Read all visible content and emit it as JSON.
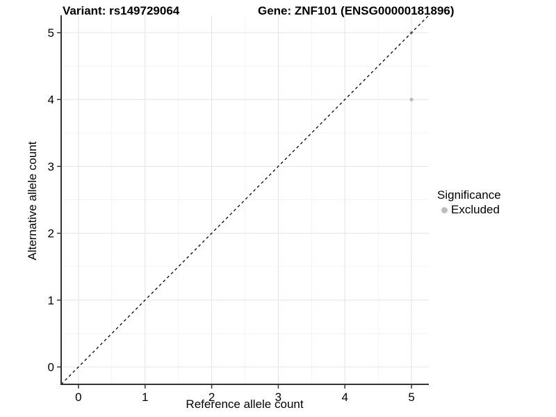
{
  "figure": {
    "title_left": "Variant: rs149729064",
    "title_right": "Gene: ZNF101 (ENSG00000181896)"
  },
  "chart_data": {
    "type": "scatter",
    "title": "Variant: rs149729064   Gene: ZNF101 (ENSG00000181896)",
    "xlabel": "Reference allele count",
    "ylabel": "Alternative allele count",
    "xlim": [
      -0.26,
      5.26
    ],
    "ylim": [
      -0.26,
      5.26
    ],
    "x_ticks": [
      0,
      1,
      2,
      3,
      4,
      5
    ],
    "y_ticks": [
      0,
      1,
      2,
      3,
      4,
      5
    ],
    "grid": {
      "major": true,
      "minor": true,
      "major_color": "#e5e5e5",
      "minor_color": "#f2f2f2"
    },
    "series": [
      {
        "name": "Excluded",
        "marker": "circle",
        "color": "#bebebe",
        "points": [
          {
            "x": 5,
            "y": 5
          },
          {
            "x": 5,
            "y": 4
          }
        ]
      }
    ],
    "reference_line": {
      "label": "identity y = x",
      "style": "dashed",
      "color": "#000000",
      "x1": -0.26,
      "y1": -0.26,
      "x2": 5.26,
      "y2": 5.26
    },
    "legend": {
      "title": "Significance",
      "position": "right",
      "entries": [
        {
          "label": "Excluded",
          "color": "#bebebe",
          "marker": "circle"
        }
      ]
    }
  },
  "colors": {
    "background": "#ffffff",
    "axis_line": "#333333",
    "tick_mark": "#333333",
    "tick_text": "#000000",
    "point": "#bebebe"
  }
}
